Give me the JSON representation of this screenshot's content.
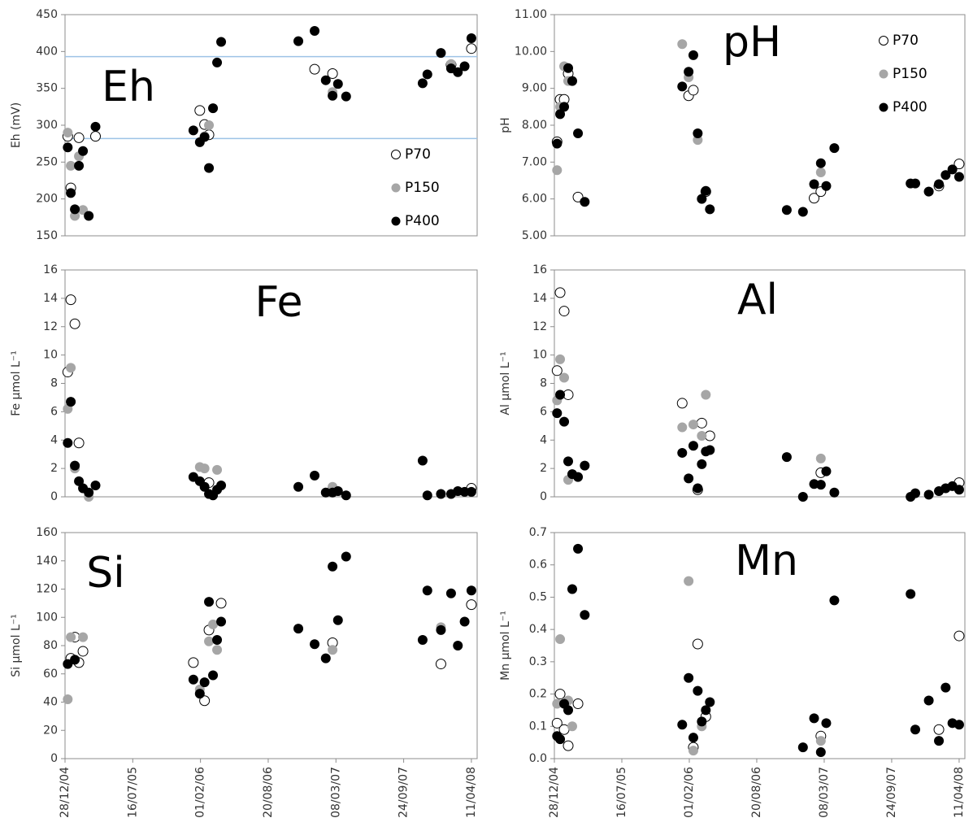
{
  "chart_data": [
    {
      "type": "scatter",
      "title": "Eh",
      "ylabel": "Eh (mV)",
      "legend": "lower right",
      "x": [
        "05/01/05",
        "14/01/05",
        "26/01/05",
        "07/02/05",
        "19/02/05",
        "08/03/05",
        "28/03/05",
        "11/01/06",
        "30/01/06",
        "13/02/06",
        "26/02/06",
        "10/03/06",
        "22/03/06",
        "03/04/06",
        "17/11/06",
        "04/01/07",
        "06/02/07",
        "26/02/07",
        "14/03/07",
        "07/04/07",
        "19/11/07",
        "03/12/07",
        "12/01/08",
        "11/02/08",
        "02/03/08",
        "22/03/08",
        "11/04/08"
      ],
      "xlim": [
        "28/12/04",
        "28/04/08"
      ],
      "ylim": [
        150,
        450
      ],
      "yticks": [
        150,
        200,
        250,
        300,
        350,
        400,
        450
      ],
      "hlines": [
        393,
        282
      ],
      "hline_color": "#9dc3e6",
      "series": [
        {
          "name": "P70",
          "color": "#000000",
          "marker": "open",
          "values": [
            285,
            215,
            null,
            283,
            null,
            null,
            285,
            null,
            320,
            301,
            287,
            null,
            null,
            null,
            null,
            376,
            null,
            370,
            null,
            null,
            null,
            null,
            null,
            382,
            null,
            null,
            404
          ]
        },
        {
          "name": "P150",
          "color": "#a6a6a6",
          "marker": "filled",
          "values": [
            290,
            245,
            177,
            258,
            185,
            null,
            null,
            null,
            null,
            285,
            300,
            null,
            null,
            null,
            null,
            null,
            null,
            345,
            null,
            null,
            null,
            null,
            null,
            383,
            null,
            null,
            null
          ]
        },
        {
          "name": "P400",
          "color": "#000000",
          "marker": "filled",
          "values": [
            270,
            208,
            186,
            245,
            265,
            177,
            298,
            293,
            277,
            284,
            242,
            323,
            385,
            413,
            414,
            428,
            361,
            340,
            356,
            339,
            357,
            369,
            398,
            377,
            372,
            380,
            418
          ]
        }
      ]
    },
    {
      "type": "scatter",
      "title": "pH",
      "ylabel": "pH",
      "legend": "upper right",
      "x": [
        "05/01/05",
        "14/01/05",
        "26/01/05",
        "07/02/05",
        "19/02/05",
        "08/03/05",
        "28/03/05",
        "11/01/06",
        "30/01/06",
        "13/02/06",
        "26/02/06",
        "10/03/06",
        "22/03/06",
        "03/04/06",
        "17/11/06",
        "04/01/07",
        "06/02/07",
        "26/02/07",
        "14/03/07",
        "07/04/07",
        "19/11/07",
        "03/12/07",
        "12/01/08",
        "11/02/08",
        "02/03/08",
        "22/03/08",
        "11/04/08"
      ],
      "xlim": [
        "28/12/04",
        "28/04/08"
      ],
      "ylim": [
        5,
        11
      ],
      "yticks": [
        {
          "value": 5,
          "label": "5.00"
        },
        {
          "value": 6,
          "label": "6.00"
        },
        {
          "value": 7,
          "label": "7.00"
        },
        {
          "value": 8,
          "label": "8.00"
        },
        {
          "value": 9,
          "label": "9.00"
        },
        {
          "value": 10,
          "label": "10.00"
        },
        {
          "value": 11,
          "label": "11.00"
        }
      ],
      "series": [
        {
          "name": "P70",
          "color": "#000000",
          "marker": "open",
          "values": [
            7.55,
            8.7,
            8.7,
            9.4,
            null,
            6.05,
            null,
            null,
            8.8,
            8.95,
            null,
            null,
            6.2,
            null,
            null,
            null,
            6.02,
            6.2,
            null,
            null,
            null,
            null,
            null,
            6.35,
            null,
            null,
            6.95
          ]
        },
        {
          "name": "P150",
          "color": "#a6a6a6",
          "marker": "filled",
          "values": [
            6.78,
            8.5,
            9.6,
            9.2,
            null,
            null,
            null,
            10.2,
            9.3,
            null,
            7.6,
            null,
            null,
            null,
            null,
            null,
            null,
            6.72,
            null,
            null,
            null,
            null,
            6.2,
            null,
            null,
            null,
            null
          ]
        },
        {
          "name": "P400",
          "color": "#000000",
          "marker": "filled",
          "values": [
            7.5,
            8.3,
            8.5,
            9.55,
            9.2,
            7.78,
            5.92,
            9.05,
            9.45,
            9.9,
            7.78,
            6.0,
            6.22,
            5.72,
            5.7,
            5.65,
            6.4,
            6.97,
            6.35,
            7.38,
            6.42,
            6.42,
            6.2,
            6.4,
            6.65,
            6.8,
            6.6
          ]
        }
      ]
    },
    {
      "type": "scatter",
      "title": "Fe",
      "ylabel": "Fe µmol L⁻¹",
      "x": [
        "05/01/05",
        "14/01/05",
        "26/01/05",
        "07/02/05",
        "19/02/05",
        "08/03/05",
        "28/03/05",
        "11/01/06",
        "30/01/06",
        "13/02/06",
        "26/02/06",
        "10/03/06",
        "22/03/06",
        "03/04/06",
        "17/11/06",
        "04/01/07",
        "06/02/07",
        "26/02/07",
        "14/03/07",
        "07/04/07",
        "19/11/07",
        "03/12/07",
        "12/01/08",
        "11/02/08",
        "02/03/08",
        "22/03/08",
        "11/04/08"
      ],
      "xlim": [
        "28/12/04",
        "28/04/08"
      ],
      "ylim": [
        0,
        16
      ],
      "yticks": [
        0,
        2,
        4,
        6,
        8,
        10,
        12,
        14,
        16
      ],
      "series": [
        {
          "color": "#000000",
          "marker": "open",
          "values": [
            8.8,
            13.9,
            12.2,
            3.8,
            null,
            null,
            null,
            null,
            null,
            null,
            1.0,
            null,
            null,
            null,
            null,
            null,
            null,
            0.5,
            null,
            null,
            null,
            null,
            null,
            null,
            null,
            null,
            0.6
          ]
        },
        {
          "color": "#a6a6a6",
          "marker": "filled",
          "values": [
            6.2,
            9.1,
            2.0,
            null,
            null,
            0.0,
            null,
            null,
            2.1,
            2.0,
            null,
            null,
            1.9,
            null,
            null,
            null,
            null,
            0.7,
            null,
            null,
            null,
            null,
            null,
            null,
            null,
            null,
            null
          ]
        },
        {
          "color": "#000000",
          "marker": "filled",
          "values": [
            3.8,
            6.7,
            2.2,
            1.1,
            0.6,
            0.3,
            0.8,
            1.4,
            1.1,
            0.7,
            0.2,
            0.1,
            0.5,
            0.8,
            0.7,
            1.5,
            0.3,
            0.3,
            0.4,
            0.1,
            2.55,
            0.1,
            0.2,
            0.2,
            0.4,
            0.35,
            0.35
          ]
        }
      ]
    },
    {
      "type": "scatter",
      "title": "Al",
      "ylabel": "Al µmol L⁻¹",
      "x": [
        "05/01/05",
        "14/01/05",
        "26/01/05",
        "07/02/05",
        "19/02/05",
        "08/03/05",
        "28/03/05",
        "11/01/06",
        "30/01/06",
        "13/02/06",
        "26/02/06",
        "10/03/06",
        "22/03/06",
        "03/04/06",
        "17/11/06",
        "04/01/07",
        "06/02/07",
        "26/02/07",
        "14/03/07",
        "07/04/07",
        "19/11/07",
        "03/12/07",
        "12/01/08",
        "11/02/08",
        "02/03/08",
        "22/03/08",
        "11/04/08"
      ],
      "xlim": [
        "28/12/04",
        "28/04/08"
      ],
      "ylim": [
        0,
        16
      ],
      "yticks": [
        0,
        2,
        4,
        6,
        8,
        10,
        12,
        14,
        16
      ],
      "series": [
        {
          "color": "#000000",
          "marker": "open",
          "values": [
            8.9,
            14.4,
            13.1,
            7.2,
            null,
            null,
            null,
            6.6,
            null,
            null,
            0.5,
            5.2,
            null,
            4.3,
            null,
            null,
            null,
            1.7,
            null,
            null,
            null,
            null,
            null,
            null,
            null,
            null,
            1.0
          ]
        },
        {
          "color": "#a6a6a6",
          "marker": "filled",
          "values": [
            6.8,
            9.7,
            8.4,
            1.2,
            null,
            null,
            null,
            4.9,
            null,
            5.1,
            null,
            4.3,
            7.2,
            null,
            null,
            null,
            null,
            2.7,
            null,
            null,
            null,
            null,
            null,
            null,
            null,
            null,
            null
          ]
        },
        {
          "color": "#000000",
          "marker": "filled",
          "values": [
            5.9,
            7.2,
            5.3,
            2.5,
            1.6,
            1.4,
            2.2,
            3.1,
            1.3,
            3.6,
            0.6,
            2.3,
            3.2,
            3.3,
            2.8,
            0.0,
            0.9,
            0.85,
            1.8,
            0.3,
            0.0,
            0.25,
            0.15,
            0.4,
            0.6,
            0.75,
            0.5
          ]
        }
      ]
    },
    {
      "type": "scatter",
      "title": "Si",
      "ylabel": "Si µmol L⁻¹",
      "x": [
        "05/01/05",
        "14/01/05",
        "26/01/05",
        "07/02/05",
        "19/02/05",
        "08/03/05",
        "28/03/05",
        "11/01/06",
        "30/01/06",
        "13/02/06",
        "26/02/06",
        "10/03/06",
        "22/03/06",
        "03/04/06",
        "17/11/06",
        "04/01/07",
        "06/02/07",
        "26/02/07",
        "14/03/07",
        "07/04/07",
        "19/11/07",
        "03/12/07",
        "12/01/08",
        "11/02/08",
        "02/03/08",
        "22/03/08",
        "11/04/08"
      ],
      "xlim": [
        "28/12/04",
        "28/04/08"
      ],
      "xticks": [
        "28/12/04",
        "16/07/05",
        "01/02/06",
        "20/08/06",
        "08/03/07",
        "24/09/07",
        "11/04/08"
      ],
      "ylim": [
        0,
        160
      ],
      "yticks": [
        0,
        20,
        40,
        60,
        80,
        100,
        120,
        140,
        160
      ],
      "series": [
        {
          "color": "#000000",
          "marker": "open",
          "values": [
            null,
            71,
            86,
            68,
            76,
            null,
            null,
            68,
            null,
            41,
            91,
            null,
            null,
            110,
            null,
            null,
            null,
            82,
            null,
            null,
            null,
            null,
            67,
            null,
            null,
            null,
            109
          ]
        },
        {
          "color": "#a6a6a6",
          "marker": "filled",
          "values": [
            42,
            86,
            null,
            null,
            86,
            null,
            null,
            null,
            49,
            null,
            83,
            95,
            77,
            null,
            null,
            null,
            null,
            77,
            null,
            null,
            null,
            null,
            93,
            null,
            null,
            null,
            null
          ]
        },
        {
          "color": "#000000",
          "marker": "filled",
          "values": [
            67,
            null,
            70,
            null,
            null,
            null,
            null,
            56,
            46,
            54,
            111,
            59,
            84,
            97,
            92,
            81,
            71,
            136,
            98,
            143,
            84,
            119,
            91,
            117,
            80,
            97,
            119
          ]
        }
      ]
    },
    {
      "type": "scatter",
      "title": "Mn",
      "ylabel": "Mn µmol L⁻¹",
      "x": [
        "05/01/05",
        "14/01/05",
        "26/01/05",
        "07/02/05",
        "19/02/05",
        "08/03/05",
        "28/03/05",
        "11/01/06",
        "30/01/06",
        "13/02/06",
        "26/02/06",
        "10/03/06",
        "22/03/06",
        "03/04/06",
        "17/11/06",
        "04/01/07",
        "06/02/07",
        "26/02/07",
        "14/03/07",
        "07/04/07",
        "19/11/07",
        "03/12/07",
        "12/01/08",
        "11/02/08",
        "02/03/08",
        "22/03/08",
        "11/04/08"
      ],
      "xlim": [
        "28/12/04",
        "28/04/08"
      ],
      "xticks": [
        "28/12/04",
        "16/07/05",
        "01/02/06",
        "20/08/06",
        "08/03/07",
        "24/09/07",
        "11/04/08"
      ],
      "ylim": [
        0,
        0.7
      ],
      "yticks": [
        {
          "value": 0,
          "label": "0.0"
        },
        0.1,
        0.2,
        0.3,
        0.4,
        0.5,
        0.6,
        0.7
      ],
      "series": [
        {
          "color": "#000000",
          "marker": "open",
          "values": [
            0.11,
            0.2,
            0.09,
            0.04,
            null,
            0.17,
            null,
            null,
            null,
            0.035,
            0.355,
            null,
            0.13,
            null,
            null,
            null,
            null,
            0.07,
            null,
            null,
            null,
            null,
            null,
            0.09,
            null,
            null,
            0.38
          ]
        },
        {
          "color": "#a6a6a6",
          "marker": "filled",
          "values": [
            0.17,
            0.37,
            null,
            0.18,
            0.1,
            null,
            null,
            null,
            0.55,
            0.025,
            null,
            0.1,
            null,
            null,
            null,
            null,
            null,
            0.055,
            null,
            null,
            null,
            null,
            null,
            null,
            null,
            null,
            null
          ]
        },
        {
          "color": "#000000",
          "marker": "filled",
          "values": [
            0.07,
            0.06,
            0.17,
            0.15,
            0.525,
            0.65,
            0.445,
            0.105,
            0.25,
            0.065,
            0.21,
            0.115,
            0.15,
            0.175,
            null,
            0.035,
            0.125,
            0.02,
            0.11,
            0.49,
            0.51,
            0.09,
            0.18,
            0.055,
            0.22,
            0.11,
            0.105
          ]
        }
      ]
    }
  ]
}
